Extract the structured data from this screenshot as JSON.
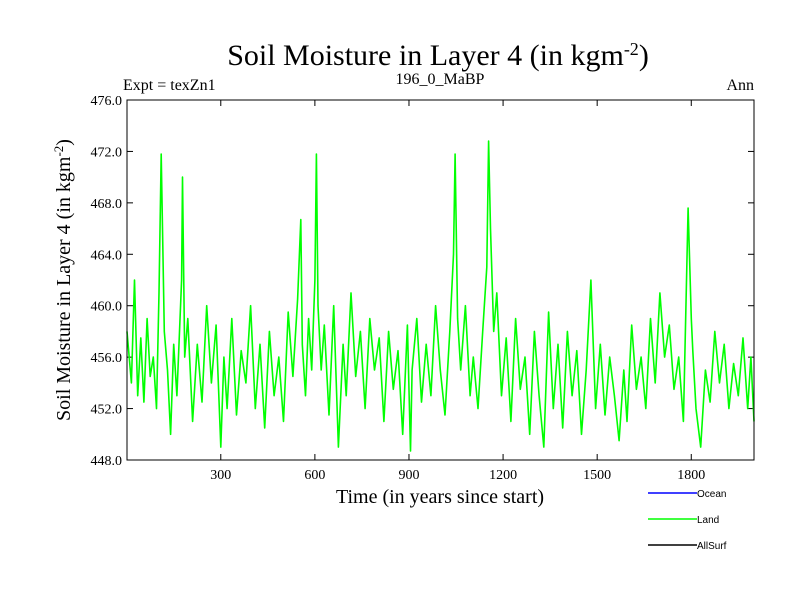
{
  "chart_data": {
    "type": "line",
    "title": "Soil Moisture in Layer 4 (in kgm",
    "title_sup": "-2",
    "title_close": ")",
    "subtitle_left": "Expt = texZn1",
    "subtitle_center": "196_0_MaBP",
    "subtitle_right": "Ann",
    "xlabel": "Time (in years since start)",
    "ylabel": "Soil Moisture in Layer 4 (in kgm",
    "ylabel_sup": "-2",
    "ylabel_close": ")",
    "xlim": [
      1,
      2000
    ],
    "ylim": [
      448.0,
      476.0
    ],
    "xticks": [
      300,
      600,
      900,
      1200,
      1500,
      1800
    ],
    "xtick_labels": [
      "300",
      "600",
      "900",
      "1200",
      "1500",
      "1800"
    ],
    "yticks": [
      448.0,
      452.0,
      456.0,
      460.0,
      464.0,
      468.0,
      472.0,
      476.0
    ],
    "ytick_labels": [
      "448.0",
      "452.0",
      "456.0",
      "460.0",
      "464.0",
      "468.0",
      "472.0",
      "476.0"
    ],
    "legend": [
      {
        "name": "Ocean",
        "color": "#0000ff"
      },
      {
        "name": "Land",
        "color": "#00ff00"
      },
      {
        "name": "AllSurf",
        "color": "#000000"
      }
    ],
    "series": [
      {
        "name": "Land",
        "color": "#00ff00",
        "x": [
          1,
          15,
          25,
          35,
          45,
          55,
          65,
          75,
          85,
          95,
          103,
          110,
          120,
          130,
          140,
          150,
          160,
          175,
          178,
          185,
          195,
          210,
          225,
          240,
          255,
          270,
          285,
          300,
          310,
          320,
          335,
          350,
          365,
          380,
          395,
          410,
          425,
          440,
          455,
          470,
          485,
          500,
          515,
          530,
          545,
          555,
          560,
          570,
          580,
          590,
          600,
          605,
          610,
          620,
          630,
          645,
          660,
          675,
          690,
          700,
          715,
          730,
          745,
          760,
          775,
          790,
          805,
          820,
          835,
          850,
          865,
          880,
          895,
          905,
          910,
          925,
          940,
          955,
          970,
          985,
          1000,
          1015,
          1030,
          1042,
          1047,
          1055,
          1065,
          1080,
          1095,
          1105,
          1120,
          1135,
          1148,
          1154,
          1160,
          1170,
          1180,
          1195,
          1210,
          1225,
          1240,
          1255,
          1270,
          1285,
          1300,
          1315,
          1330,
          1345,
          1360,
          1375,
          1390,
          1405,
          1420,
          1435,
          1450,
          1465,
          1480,
          1495,
          1510,
          1525,
          1540,
          1555,
          1570,
          1585,
          1595,
          1610,
          1625,
          1640,
          1655,
          1670,
          1685,
          1700,
          1715,
          1730,
          1745,
          1760,
          1775,
          1790,
          1800,
          1805,
          1815,
          1830,
          1845,
          1860,
          1875,
          1890,
          1905,
          1920,
          1935,
          1950,
          1965,
          1980,
          1990,
          2000
        ],
        "y": [
          458.0,
          454.0,
          462.0,
          453.0,
          457.5,
          452.5,
          459.0,
          454.5,
          456.0,
          452.0,
          461.0,
          471.8,
          458.0,
          455.0,
          450.0,
          457.0,
          453.0,
          462.0,
          470.0,
          456.0,
          459.0,
          451.0,
          457.0,
          452.5,
          460.0,
          454.0,
          458.5,
          449.0,
          456.0,
          452.0,
          459.0,
          451.5,
          456.5,
          454.0,
          460.0,
          452.0,
          457.0,
          450.5,
          458.0,
          453.0,
          456.0,
          451.0,
          459.5,
          454.5,
          460.5,
          466.7,
          457.0,
          453.0,
          459.0,
          455.0,
          462.0,
          471.8,
          460.0,
          455.0,
          458.5,
          451.5,
          460.0,
          449.0,
          457.0,
          453.0,
          461.0,
          454.5,
          458.0,
          452.0,
          459.0,
          455.0,
          457.5,
          451.0,
          458.0,
          453.5,
          456.5,
          450.0,
          458.5,
          448.7,
          455.0,
          459.0,
          452.5,
          457.0,
          453.0,
          460.0,
          455.0,
          451.5,
          458.0,
          464.0,
          471.8,
          459.0,
          455.0,
          460.0,
          453.0,
          456.0,
          452.0,
          458.0,
          463.0,
          472.8,
          466.0,
          458.0,
          461.0,
          453.0,
          457.5,
          451.0,
          459.0,
          453.5,
          456.0,
          450.0,
          458.0,
          453.0,
          449.0,
          459.5,
          452.0,
          457.0,
          450.5,
          458.0,
          453.0,
          456.5,
          450.0,
          455.0,
          462.0,
          452.0,
          457.0,
          451.5,
          456.0,
          453.0,
          449.5,
          455.0,
          451.0,
          458.5,
          453.5,
          456.0,
          452.0,
          459.0,
          454.0,
          461.0,
          456.0,
          458.5,
          453.5,
          456.0,
          451.0,
          467.6,
          459.0,
          456.5,
          452.0,
          449.0,
          455.0,
          452.5,
          458.0,
          454.0,
          457.0,
          452.0,
          455.5,
          453.0,
          457.5,
          452.0,
          456.0,
          451.0
        ]
      }
    ]
  }
}
